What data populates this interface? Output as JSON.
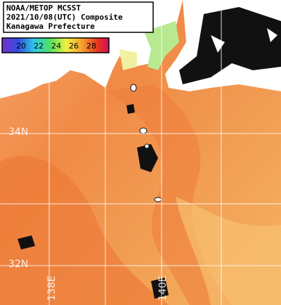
{
  "header": {
    "lines": [
      "NOAA/METOP MCSST",
      "2021/10/08(UTC) Composite",
      "Kanagawa Prefecture"
    ]
  },
  "colorbar": {
    "ticks": [
      20,
      22,
      24,
      26,
      28
    ]
  },
  "grid_labels": {
    "latitudes": [
      "34N",
      "32N"
    ],
    "longitudes": [
      "138E",
      "140E"
    ]
  }
}
